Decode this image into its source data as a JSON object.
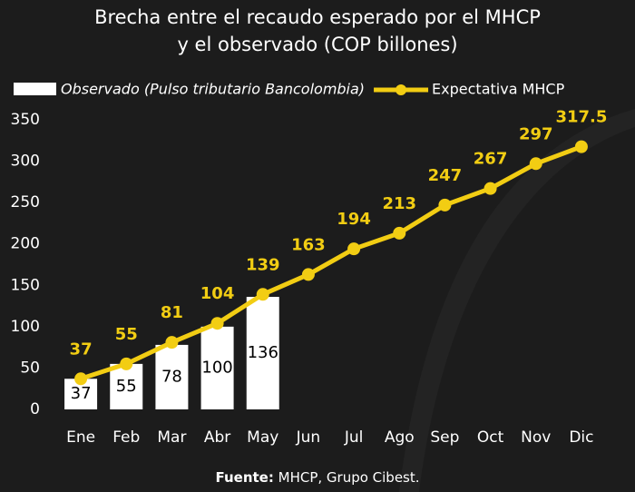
{
  "chart_data": {
    "type": "bar_line",
    "title": [
      "Brecha entre el recaudo esperado por el MHCP",
      "y el observado (COP billones)"
    ],
    "categories": [
      "Ene",
      "Feb",
      "Mar",
      "Abr",
      "May",
      "Jun",
      "Jul",
      "Ago",
      "Sep",
      "Oct",
      "Nov",
      "Dic"
    ],
    "series": [
      {
        "name": "Observado (Pulso tributario Bancolombia)",
        "type": "bar",
        "color": "#ffffff",
        "values": [
          37,
          55,
          78,
          100,
          136,
          null,
          null,
          null,
          null,
          null,
          null,
          null
        ]
      },
      {
        "name": "Expectativa MHCP",
        "type": "line",
        "color": "#f2cd13",
        "values": [
          37,
          55,
          81,
          104,
          139,
          163,
          194,
          213,
          247,
          267,
          297,
          317.5
        ]
      }
    ],
    "ylim": [
      0,
      350
    ],
    "yticks": [
      0,
      50,
      100,
      150,
      200,
      250,
      300,
      350
    ],
    "source_label": "Fuente:",
    "source": "MHCP, Grupo Cibest."
  }
}
